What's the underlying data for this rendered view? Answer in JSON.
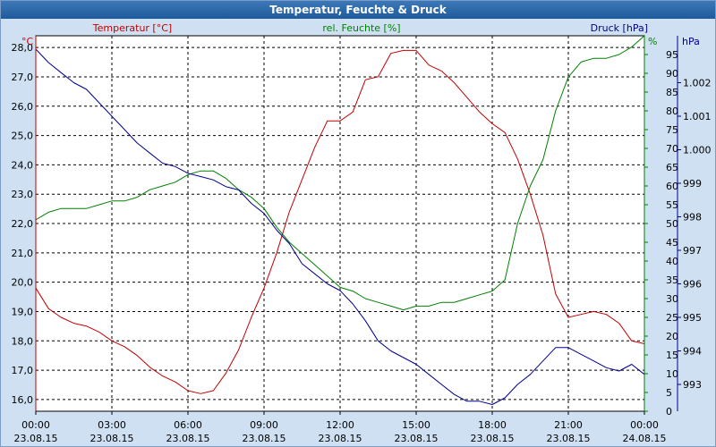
{
  "window": {
    "title": "Temperatur, Feuchte & Druck"
  },
  "chart_data": {
    "type": "line",
    "title": "Temperatur, Feuchte & Druck",
    "x": {
      "range_hours": [
        0,
        24
      ],
      "tick_hours": [
        0,
        3,
        6,
        9,
        12,
        15,
        18,
        21,
        24
      ],
      "tick_labels": [
        [
          "00:00",
          "23.08.15"
        ],
        [
          "03:00",
          "23.08.15"
        ],
        [
          "06:00",
          "23.08.15"
        ],
        [
          "09:00",
          "23.08.15"
        ],
        [
          "12:00",
          "23.08.15"
        ],
        [
          "15:00",
          "23.08.15"
        ],
        [
          "18:00",
          "23.08.15"
        ],
        [
          "21:00",
          "23.08.15"
        ],
        [
          "00:00",
          "24.08.15"
        ]
      ]
    },
    "axes": {
      "temperature": {
        "unit": "°C",
        "label": "Temperatur [°C]",
        "range": [
          15.6,
          28.4
        ],
        "ticks": [
          "16,0",
          "17,0",
          "18,0",
          "19,0",
          "20,0",
          "21,0",
          "22,0",
          "23,0",
          "24,0",
          "25,0",
          "26,0",
          "27,0",
          "28,0"
        ]
      },
      "humidity": {
        "unit": "%",
        "label": "rel. Feuchte [%]",
        "range": [
          0,
          100
        ],
        "ticks": [
          "0",
          "5",
          "10",
          "15",
          "20",
          "25",
          "30",
          "35",
          "40",
          "45",
          "50",
          "55",
          "60",
          "65",
          "70",
          "75",
          "80",
          "85",
          "90",
          "95"
        ]
      },
      "pressure": {
        "unit": "hPa",
        "label": "Druck [hPa]",
        "range": [
          992.2,
          1003.4
        ],
        "ticks": [
          "993",
          "994",
          "995",
          "996",
          "997",
          "998",
          "999",
          "1.000",
          "1.001",
          "1.002"
        ]
      }
    },
    "colors": {
      "temperature": "#c00000",
      "humidity": "#008000",
      "pressure": "#00008b",
      "grid": "#000000",
      "plot_bg": "#ffffff"
    },
    "series": [
      {
        "name": "Temperatur [°C]",
        "axis": "temperature",
        "color": "#c00000",
        "points": [
          [
            0,
            19.8
          ],
          [
            0.5,
            19.1
          ],
          [
            1,
            18.8
          ],
          [
            1.5,
            18.6
          ],
          [
            2,
            18.5
          ],
          [
            2.5,
            18.3
          ],
          [
            3,
            18.0
          ],
          [
            3.5,
            17.8
          ],
          [
            4,
            17.5
          ],
          [
            4.5,
            17.1
          ],
          [
            5,
            16.8
          ],
          [
            5.5,
            16.6
          ],
          [
            6,
            16.3
          ],
          [
            6.5,
            16.2
          ],
          [
            7,
            16.3
          ],
          [
            7.5,
            16.9
          ],
          [
            8,
            17.7
          ],
          [
            8.5,
            18.8
          ],
          [
            9,
            19.8
          ],
          [
            9.5,
            21.0
          ],
          [
            10,
            22.4
          ],
          [
            10.5,
            23.5
          ],
          [
            11,
            24.6
          ],
          [
            11.5,
            25.5
          ],
          [
            12,
            25.5
          ],
          [
            12.5,
            25.8
          ],
          [
            13,
            26.9
          ],
          [
            13.5,
            27.0
          ],
          [
            14,
            27.8
          ],
          [
            14.5,
            27.9
          ],
          [
            15,
            27.9
          ],
          [
            15.5,
            27.4
          ],
          [
            16,
            27.2
          ],
          [
            16.5,
            26.8
          ],
          [
            17,
            26.3
          ],
          [
            17.5,
            25.8
          ],
          [
            18,
            25.4
          ],
          [
            18.5,
            25.1
          ],
          [
            19,
            24.2
          ],
          [
            19.5,
            23.0
          ],
          [
            20,
            21.6
          ],
          [
            20.5,
            19.6
          ],
          [
            21,
            18.8
          ],
          [
            21.5,
            18.9
          ],
          [
            22,
            19.0
          ],
          [
            22.5,
            18.9
          ],
          [
            23,
            18.6
          ],
          [
            23.5,
            18.0
          ],
          [
            24,
            17.9
          ]
        ]
      },
      {
        "name": "rel. Feuchte [%]",
        "axis": "humidity",
        "color": "#008000",
        "points": [
          [
            0,
            51
          ],
          [
            0.5,
            53
          ],
          [
            1,
            54
          ],
          [
            1.5,
            54
          ],
          [
            2,
            54
          ],
          [
            2.5,
            55
          ],
          [
            3,
            56
          ],
          [
            3.5,
            56
          ],
          [
            4,
            57
          ],
          [
            4.5,
            59
          ],
          [
            5,
            60
          ],
          [
            5.5,
            61
          ],
          [
            6,
            63
          ],
          [
            6.5,
            64
          ],
          [
            7,
            64
          ],
          [
            7.5,
            62
          ],
          [
            8,
            59
          ],
          [
            8.5,
            57
          ],
          [
            9,
            54
          ],
          [
            9.5,
            49
          ],
          [
            10,
            45
          ],
          [
            10.5,
            42
          ],
          [
            11,
            39
          ],
          [
            11.5,
            36
          ],
          [
            12,
            33
          ],
          [
            12.5,
            32
          ],
          [
            13,
            30
          ],
          [
            13.5,
            29
          ],
          [
            14,
            28
          ],
          [
            14.5,
            27
          ],
          [
            15,
            28
          ],
          [
            15.5,
            28
          ],
          [
            16,
            29
          ],
          [
            16.5,
            29
          ],
          [
            17,
            30
          ],
          [
            17.5,
            31
          ],
          [
            18,
            32
          ],
          [
            18.5,
            35
          ],
          [
            19,
            50
          ],
          [
            19.5,
            60
          ],
          [
            20,
            67
          ],
          [
            20.5,
            80
          ],
          [
            21,
            89
          ],
          [
            21.5,
            93
          ],
          [
            22,
            94
          ],
          [
            22.5,
            94
          ],
          [
            23,
            95
          ],
          [
            23.5,
            97
          ],
          [
            24,
            100
          ]
        ]
      },
      {
        "name": "Druck [hPa]",
        "axis": "pressure",
        "color": "#00008b",
        "points": [
          [
            0,
            1003.0
          ],
          [
            0.5,
            1002.6
          ],
          [
            1,
            1002.3
          ],
          [
            1.5,
            1002.0
          ],
          [
            2,
            1001.8
          ],
          [
            2.5,
            1001.4
          ],
          [
            3,
            1001.0
          ],
          [
            3.5,
            1000.6
          ],
          [
            4,
            1000.2
          ],
          [
            4.5,
            999.9
          ],
          [
            5,
            999.6
          ],
          [
            5.5,
            999.5
          ],
          [
            6,
            999.3
          ],
          [
            6.5,
            999.2
          ],
          [
            7,
            999.1
          ],
          [
            7.5,
            998.9
          ],
          [
            8,
            998.8
          ],
          [
            8.5,
            998.4
          ],
          [
            9,
            998.1
          ],
          [
            9.5,
            997.6
          ],
          [
            10,
            997.2
          ],
          [
            10.5,
            996.6
          ],
          [
            11,
            996.3
          ],
          [
            11.5,
            996.0
          ],
          [
            12,
            995.8
          ],
          [
            12.5,
            995.4
          ],
          [
            13,
            994.9
          ],
          [
            13.5,
            994.3
          ],
          [
            14,
            994.0
          ],
          [
            14.5,
            993.8
          ],
          [
            15,
            993.6
          ],
          [
            15.5,
            993.3
          ],
          [
            16,
            993.0
          ],
          [
            16.5,
            992.7
          ],
          [
            17,
            992.5
          ],
          [
            17.5,
            992.5
          ],
          [
            18,
            992.4
          ],
          [
            18.5,
            992.6
          ],
          [
            19,
            993.0
          ],
          [
            19.5,
            993.3
          ],
          [
            20,
            993.7
          ],
          [
            20.5,
            994.1
          ],
          [
            21,
            994.1
          ],
          [
            21.5,
            993.9
          ],
          [
            22,
            993.7
          ],
          [
            22.5,
            993.5
          ],
          [
            23,
            993.4
          ],
          [
            23.5,
            993.6
          ],
          [
            24,
            993.3
          ]
        ]
      }
    ]
  }
}
